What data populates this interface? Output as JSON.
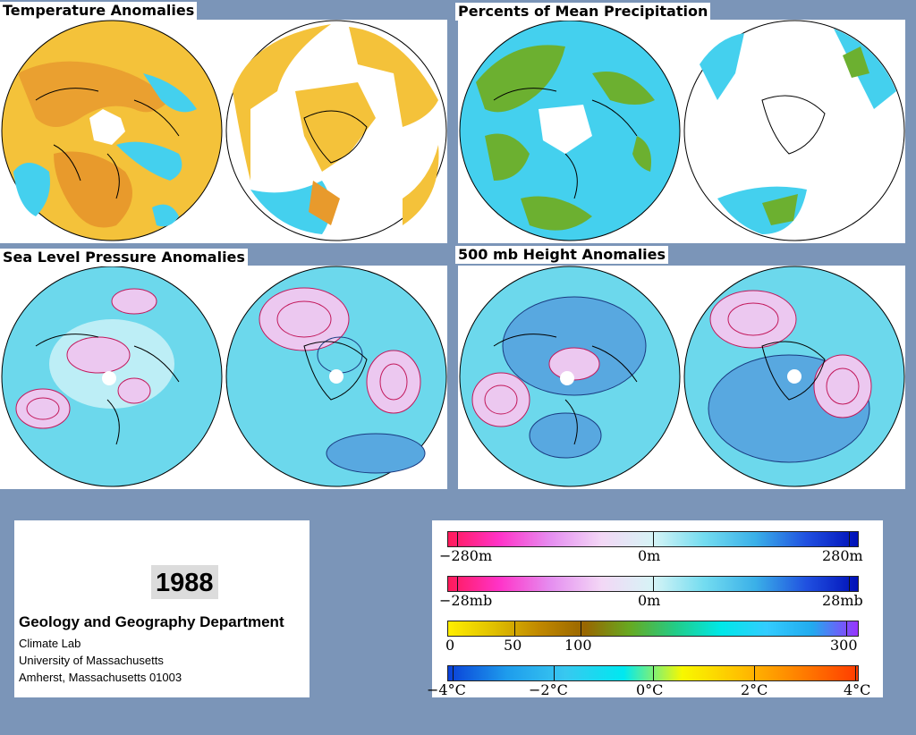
{
  "panels": {
    "temperature": {
      "title": "Temperature Anomalies"
    },
    "precipitation": {
      "title": "Percents of Mean Precipitation"
    },
    "sea_level_pressure": {
      "title": "Sea Level Pressure Anomalies"
    },
    "height_500mb": {
      "title": "500 mb Height Anomalies"
    }
  },
  "info": {
    "year": "1988",
    "department": "Geology and Geography Department",
    "lab": "Climate Lab",
    "university": "University of Massachusetts",
    "address": "Amherst, Massachusetts 01003"
  },
  "legend": {
    "height": {
      "min": "−280m",
      "mid": "0m",
      "max": "280m",
      "colors": [
        "#ff1a5a",
        "#ff33c8",
        "#e58ef0",
        "#f3d8f6",
        "#d6f4f6",
        "#73dcf0",
        "#3ab0e8",
        "#2050e0",
        "#0010b8"
      ]
    },
    "pressure": {
      "min": "−28mb",
      "mid": "0m",
      "max": "28mb",
      "colors": [
        "#ff1a5a",
        "#ff33c8",
        "#e58ef0",
        "#f3d8f6",
        "#d6f4f6",
        "#73dcf0",
        "#3ab0e8",
        "#2050e0",
        "#0010b8"
      ]
    },
    "precip": {
      "l0": "0",
      "l50": "50",
      "l100": "100",
      "l300": "300",
      "colors": [
        "#ffee00",
        "#e0c000",
        "#c08800",
        "#996600",
        "#66aa22",
        "#22cc88",
        "#00e8e8",
        "#33ccff",
        "#22aaee",
        "#9933ff"
      ]
    },
    "temp": {
      "l1": "−4°C",
      "l2": "−2°C",
      "l3": "0°C",
      "l4": "2°C",
      "l5": "4°C",
      "colors": [
        "#0a40d8",
        "#1e9cec",
        "#38c8f0",
        "#00e8f0",
        "#f8f800",
        "#ffc000",
        "#ff8000",
        "#ff3c00"
      ]
    }
  }
}
